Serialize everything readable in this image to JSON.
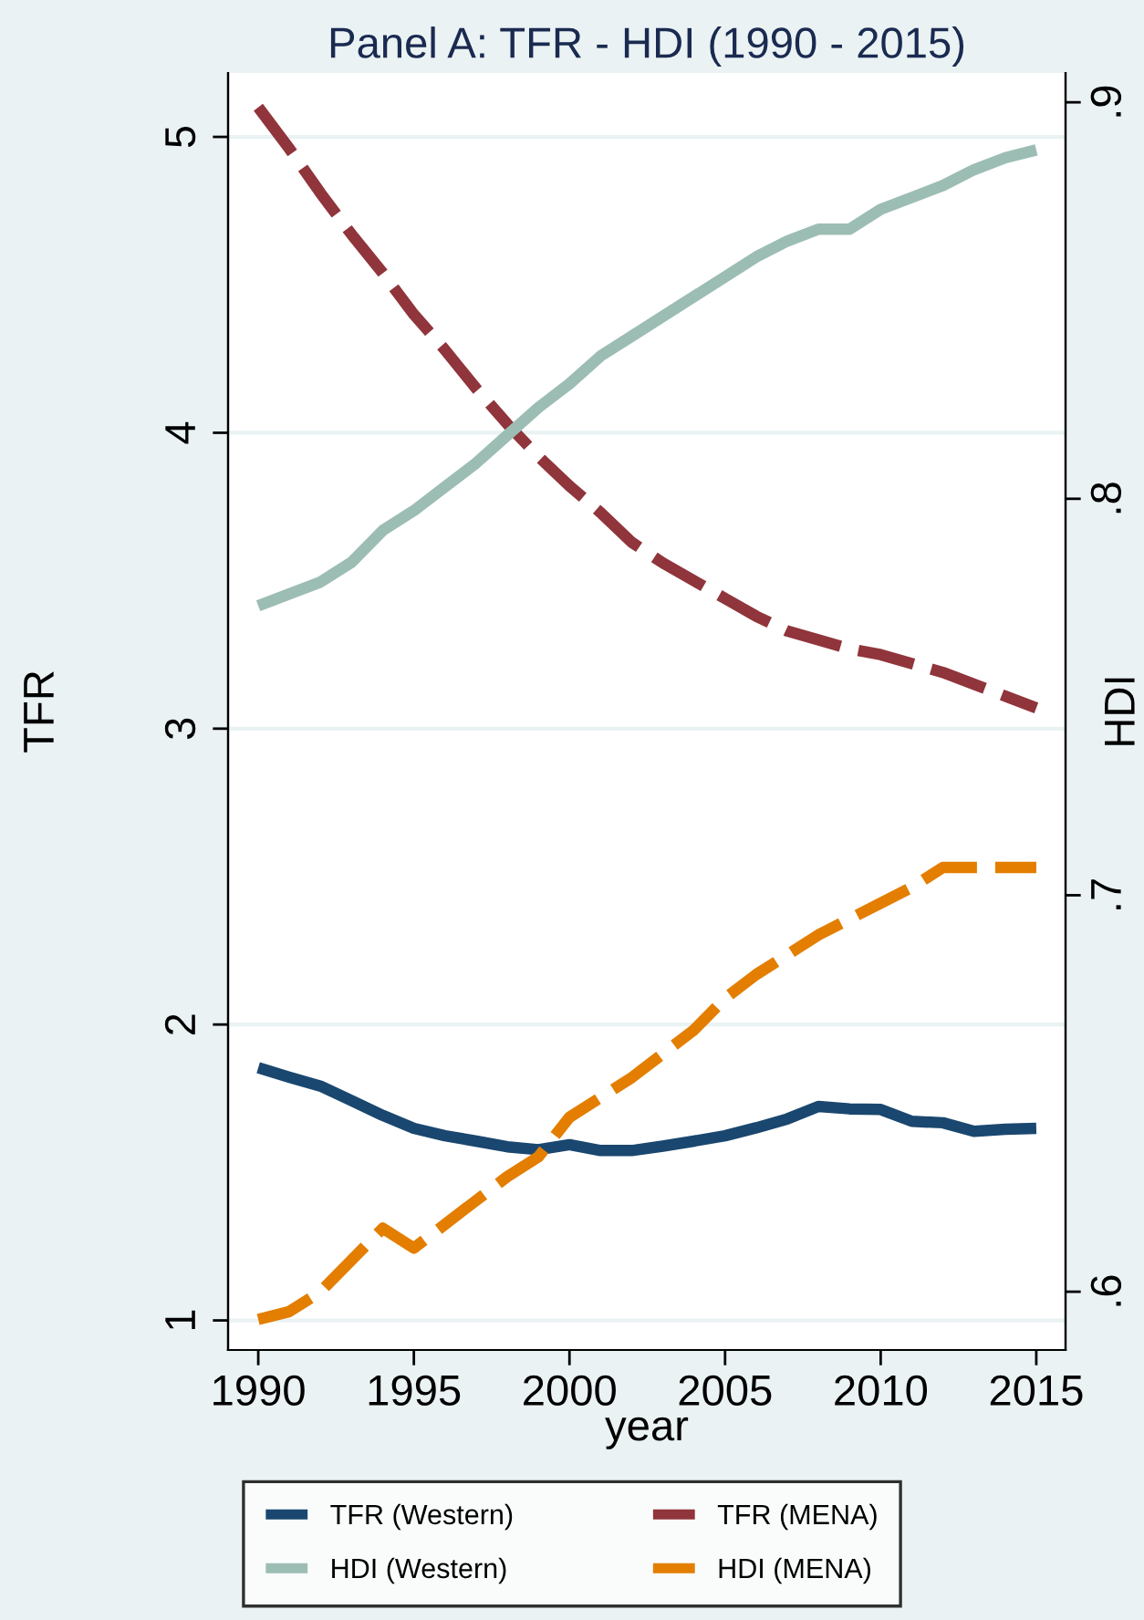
{
  "chart_data": {
    "type": "line",
    "title": "Panel A: TFR - HDI (1990 - 2015)",
    "xlabel": "year",
    "ylabel": "TFR",
    "y2label": "HDI",
    "x": [
      1990,
      1991,
      1992,
      1993,
      1994,
      1995,
      1996,
      1997,
      1998,
      1999,
      2000,
      2001,
      2002,
      2003,
      2004,
      2005,
      2006,
      2007,
      2008,
      2009,
      2010,
      2011,
      2012,
      2013,
      2014,
      2015
    ],
    "series": [
      {
        "name": "TFR (Western)",
        "color": "#1a476f",
        "line_style": "solid",
        "values": [
          1.854,
          1.822,
          1.792,
          1.743,
          1.693,
          1.649,
          1.624,
          1.606,
          1.587,
          1.577,
          1.594,
          1.574,
          1.574,
          1.589,
          1.606,
          1.624,
          1.651,
          1.681,
          1.723,
          1.715,
          1.713,
          1.673,
          1.668,
          1.639,
          1.646,
          1.649
        ]
      },
      {
        "name": "TFR (MENA)",
        "color": "#90353b",
        "line_style": "dashed",
        "values": [
          5.1,
          4.96,
          4.81,
          4.67,
          4.54,
          4.4,
          4.28,
          4.15,
          4.03,
          3.92,
          3.82,
          3.73,
          3.63,
          3.56,
          3.5,
          3.44,
          3.38,
          3.33,
          3.3,
          3.27,
          3.25,
          3.22,
          3.19,
          3.15,
          3.11,
          3.07
        ]
      },
      {
        "name": "HDI (Western)",
        "color": "#9cbdb4",
        "line_style": "solid",
        "axis": "y2",
        "values": [
          0.773,
          0.776,
          0.779,
          0.784,
          0.792,
          0.797,
          0.803,
          0.809,
          0.816,
          0.823,
          0.829,
          0.836,
          0.841,
          0.846,
          0.851,
          0.856,
          0.861,
          0.865,
          0.868,
          0.868,
          0.873,
          0.876,
          0.879,
          0.883,
          0.886,
          0.888
        ]
      },
      {
        "name": "HDI (MENA)",
        "color": "#e37e00",
        "line_style": "dashed",
        "axis": "y2",
        "values": [
          0.593,
          0.595,
          0.6,
          0.608,
          0.616,
          0.611,
          0.617,
          0.623,
          0.629,
          0.634,
          0.644,
          0.649,
          0.654,
          0.66,
          0.666,
          0.674,
          0.68,
          0.685,
          0.69,
          0.694,
          0.698,
          0.702,
          0.707,
          0.707,
          0.707,
          0.707
        ]
      }
    ],
    "xlim": [
      1989.03,
      2015.94
    ],
    "xticks": [
      1990,
      1995,
      2000,
      2005,
      2010,
      2015
    ],
    "ylim": [
      0.9,
      5.216
    ],
    "yticks": [
      1,
      2,
      3,
      4,
      5
    ],
    "y2lim": [
      0.5853,
      0.9074
    ],
    "y2ticks": [
      {
        "value": 0.6,
        "label": ".6"
      },
      {
        "value": 0.7,
        "label": ".7"
      },
      {
        "value": 0.8,
        "label": ".8"
      },
      {
        "value": 0.9,
        "label": ".9"
      }
    ],
    "grid": "y",
    "legend": "bottom",
    "marker": "none"
  }
}
